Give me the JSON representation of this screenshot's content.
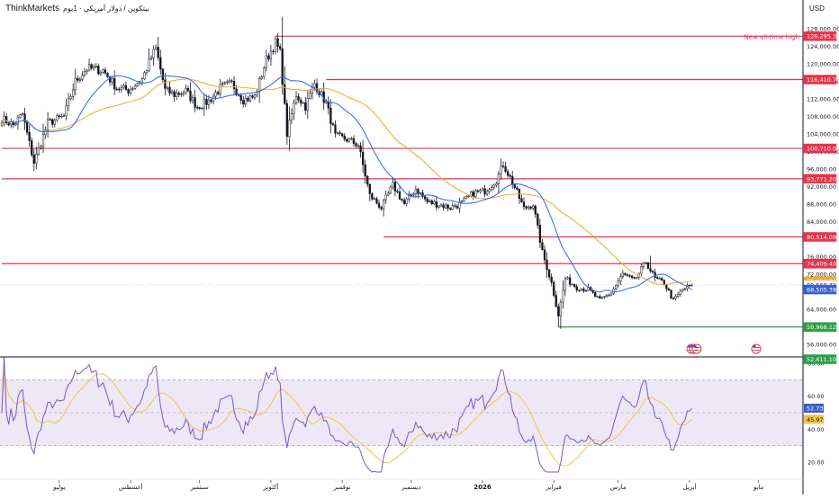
{
  "header": {
    "brand": "ThinkMarkets",
    "subtitle": "بيتكوين / دولار أمريكي · 1يوم"
  },
  "currency": "USD",
  "colors": {
    "up": "#131722",
    "down": "#131722",
    "ma_fast": "#2962ff",
    "ma_slow": "#f5a623",
    "level": "#e8334a",
    "support": "#2e9e46",
    "rsi": "#7e57c2",
    "rsi_ma": "#f5c342",
    "rsi_band": "#ede7f6",
    "grid": "#ffffff"
  },
  "chart_data": {
    "type": "candlestick",
    "price_axis": {
      "ticks": [
        "128,000.00",
        "124,000.00",
        "120,000.00",
        "116,000.00",
        "112,000.00",
        "108,000.00",
        "104,000.00",
        "100,000.00",
        "96,000.00",
        "92,000.00",
        "88,000.00",
        "84,000.00",
        "80,000.00",
        "76,000.00",
        "72,000.00",
        "68,000.00",
        "64,000.00",
        "60,000.00",
        "56,000.00"
      ],
      "tick_values": [
        128000,
        124000,
        120000,
        116000,
        112000,
        108000,
        104000,
        100000,
        96000,
        92000,
        88000,
        84000,
        80000,
        76000,
        72000,
        68000,
        64000,
        60000,
        56000
      ]
    },
    "time_axis": [
      "يوليو",
      "أغسطس",
      "سبتمبر",
      "أكتوبر",
      "نوفمبر",
      "ديسمبر",
      "2026",
      "فبراير",
      "مارس",
      "أبريل",
      "مايو"
    ],
    "time_axis_idx": [
      25,
      56,
      86,
      117,
      148,
      178,
      209,
      240,
      268,
      299,
      329
    ],
    "price_labels": [
      {
        "text": "126,295.32",
        "value": 126295.32,
        "kind": "level"
      },
      {
        "text": "116,410.74",
        "value": 116410.74,
        "kind": "level"
      },
      {
        "text": "100,710.00",
        "value": 100710.0,
        "kind": "level"
      },
      {
        "text": "93,771.20",
        "value": 93771.2,
        "kind": "level"
      },
      {
        "text": "80,514.09",
        "value": 80514.09,
        "kind": "level"
      },
      {
        "text": "74,409.40",
        "value": 74409.4,
        "kind": "level"
      },
      {
        "text": "70,409.09",
        "value": 70409.09,
        "kind": "ma_slow"
      },
      {
        "text": "69,568.71",
        "value": 69568.71,
        "kind": "price"
      },
      {
        "text": "68,505.38",
        "value": 68505.38,
        "kind": "ma_fast"
      },
      {
        "text": "59,968.12",
        "value": 59968.12,
        "kind": "support"
      },
      {
        "text": "52,611.10",
        "value": 52611.1,
        "kind": "support"
      }
    ],
    "levels": [
      {
        "value": 126295.32,
        "from_idx": 119,
        "color": "level",
        "annotation": "New all-time high"
      },
      {
        "value": 116410.74,
        "from_idx": 141,
        "color": "level"
      },
      {
        "value": 100710.0,
        "from_idx": 0,
        "color": "level"
      },
      {
        "value": 93771.2,
        "from_idx": 0,
        "color": "level"
      },
      {
        "value": 80514.09,
        "from_idx": 166,
        "color": "level"
      },
      {
        "value": 74409.4,
        "from_idx": 0,
        "color": "level"
      },
      {
        "value": 59968.12,
        "from_idx": 242,
        "color": "support"
      }
    ],
    "anchors": [
      [
        0,
        107500
      ],
      [
        5,
        106000
      ],
      [
        9,
        108500
      ],
      [
        14,
        97500
      ],
      [
        20,
        106500
      ],
      [
        27,
        108000
      ],
      [
        32,
        116000
      ],
      [
        37,
        119000
      ],
      [
        44,
        118500
      ],
      [
        50,
        114500
      ],
      [
        55,
        114000
      ],
      [
        61,
        116500
      ],
      [
        65,
        121500
      ],
      [
        67,
        123500
      ],
      [
        71,
        114000
      ],
      [
        75,
        113000
      ],
      [
        80,
        113800
      ],
      [
        85,
        110200
      ],
      [
        90,
        111500
      ],
      [
        95,
        114500
      ],
      [
        100,
        115500
      ],
      [
        105,
        111800
      ],
      [
        110,
        112500
      ],
      [
        115,
        121000
      ],
      [
        119,
        124800
      ],
      [
        121,
        122500
      ],
      [
        124,
        104000
      ],
      [
        128,
        113000
      ],
      [
        132,
        110300
      ],
      [
        136,
        115500
      ],
      [
        141,
        111000
      ],
      [
        145,
        103500
      ],
      [
        150,
        102800
      ],
      [
        155,
        101500
      ],
      [
        160,
        90000
      ],
      [
        165,
        87200
      ],
      [
        170,
        92300
      ],
      [
        175,
        88000
      ],
      [
        180,
        91500
      ],
      [
        185,
        88500
      ],
      [
        190,
        87900
      ],
      [
        195,
        87200
      ],
      [
        200,
        88200
      ],
      [
        205,
        90500
      ],
      [
        210,
        91000
      ],
      [
        215,
        93500
      ],
      [
        218,
        97100
      ],
      [
        222,
        93000
      ],
      [
        227,
        87000
      ],
      [
        231,
        88000
      ],
      [
        235,
        77000
      ],
      [
        239,
        70000
      ],
      [
        242,
        62700
      ],
      [
        245,
        71000
      ],
      [
        250,
        69000
      ],
      [
        255,
        68500
      ],
      [
        260,
        66000
      ],
      [
        265,
        67800
      ],
      [
        270,
        72000
      ],
      [
        275,
        70500
      ],
      [
        280,
        74800
      ],
      [
        284,
        71000
      ],
      [
        288,
        70000
      ],
      [
        292,
        66000
      ],
      [
        296,
        68500
      ],
      [
        300,
        69568
      ]
    ],
    "ma_fast": {
      "value": 68505.38
    },
    "ma_slow": {
      "value": 70409.09
    },
    "rsi": {
      "axis_ticks": [
        "80.00",
        "60.00",
        "40.00",
        "20.00"
      ],
      "axis_values": [
        80,
        60,
        40,
        20
      ],
      "upper": 70,
      "lower": 30,
      "mid": 50,
      "current": 52.73,
      "current_text": "52.73",
      "ma": 45.97,
      "ma_text": "45.97"
    },
    "bars": 300
  }
}
